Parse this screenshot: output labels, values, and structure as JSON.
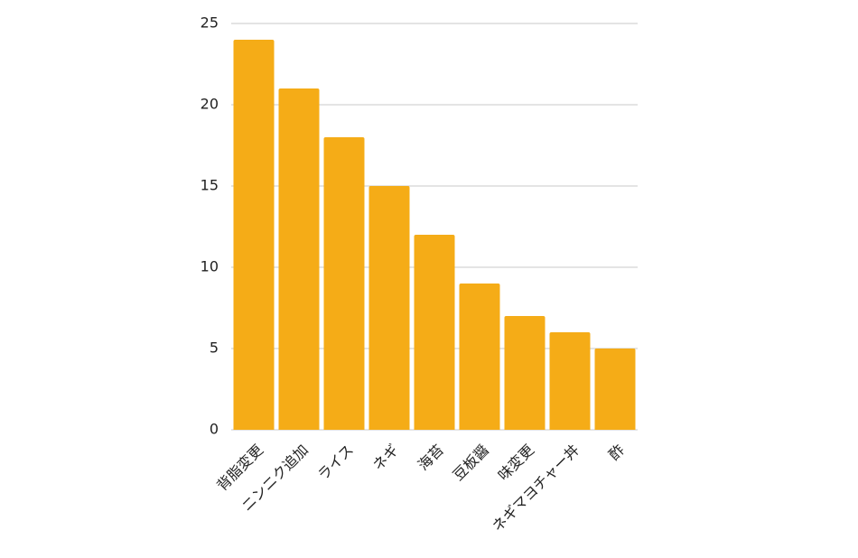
{
  "chart_data": {
    "type": "bar",
    "categories": [
      "背脂変更",
      "ニンニク追加",
      "ライス",
      "ネギ",
      "海苔",
      "豆板醤",
      "味変更",
      "ネギマヨチャー丼",
      "酢"
    ],
    "values": [
      24,
      21,
      18,
      15,
      12,
      9,
      7,
      6,
      5
    ],
    "color": "#f5ac17",
    "ylim": [
      0,
      25
    ],
    "yticks": [
      0,
      5,
      10,
      15,
      20,
      25
    ],
    "grid": true
  }
}
